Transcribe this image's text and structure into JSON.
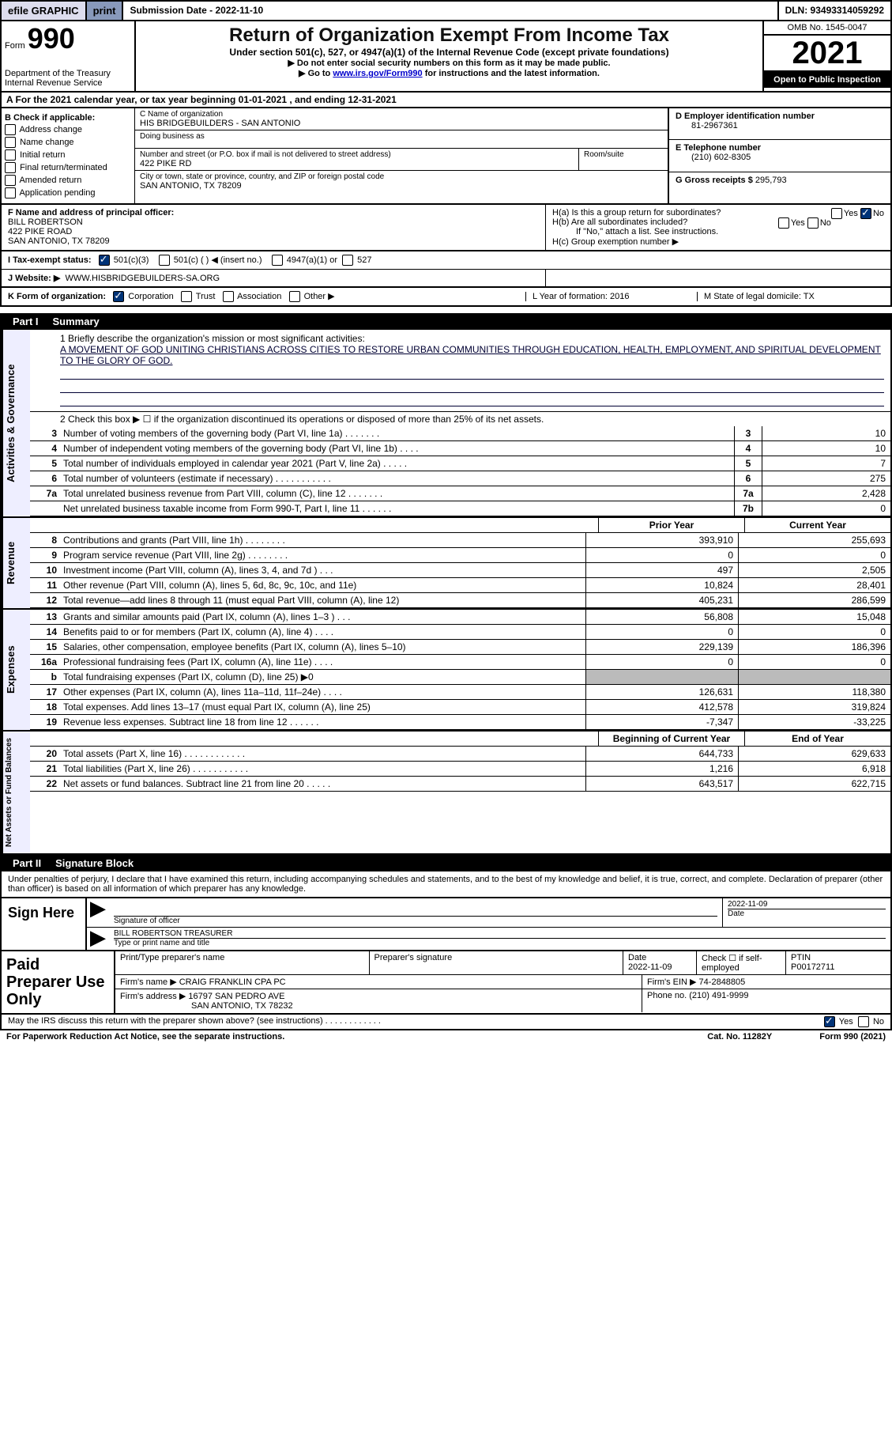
{
  "topbar": {
    "efile": "efile GRAPHIC",
    "print": "print",
    "submission": "Submission Date - 2022-11-10",
    "dln": "DLN: 93493314059292"
  },
  "header": {
    "form_label": "Form",
    "form_num": "990",
    "dept": "Department of the Treasury\nInternal Revenue Service",
    "title": "Return of Organization Exempt From Income Tax",
    "subtitle": "Under section 501(c), 527, or 4947(a)(1) of the Internal Revenue Code (except private foundations)",
    "line1": "▶ Do not enter social security numbers on this form as it may be made public.",
    "line2_pre": "▶ Go to ",
    "line2_link": "www.irs.gov/Form990",
    "line2_post": " for instructions and the latest information.",
    "omb": "OMB No. 1545-0047",
    "year": "2021",
    "open": "Open to Public Inspection"
  },
  "row_a": "A For the 2021 calendar year, or tax year beginning 01-01-2021   , and ending 12-31-2021",
  "box_b": {
    "hdr": "B Check if applicable:",
    "items": [
      "Address change",
      "Name change",
      "Initial return",
      "Final return/terminated",
      "Amended return",
      "Application pending"
    ]
  },
  "box_c": {
    "name_lbl": "C Name of organization",
    "name": "HIS BRIDGEBUILDERS - SAN ANTONIO",
    "dba_lbl": "Doing business as",
    "dba": "",
    "addr_lbl": "Number and street (or P.O. box if mail is not delivered to street address)",
    "addr": "422 PIKE RD",
    "room_lbl": "Room/suite",
    "city_lbl": "City or town, state or province, country, and ZIP or foreign postal code",
    "city": "SAN ANTONIO, TX  78209"
  },
  "box_d": {
    "ein_lbl": "D Employer identification number",
    "ein": "81-2967361",
    "tel_lbl": "E Telephone number",
    "tel": "(210) 602-8305",
    "gross_lbl": "G Gross receipts $",
    "gross": "295,793"
  },
  "box_f": {
    "lbl": "F Name and address of principal officer:",
    "name": "BILL ROBERTSON",
    "addr1": "422 PIKE ROAD",
    "addr2": "SAN ANTONIO, TX  78209"
  },
  "box_h": {
    "ha": "H(a)  Is this a group return for subordinates?",
    "hb": "H(b)  Are all subordinates included?",
    "hb_note": "If \"No,\" attach a list. See instructions.",
    "hc": "H(c)  Group exemption number ▶",
    "yes": "Yes",
    "no": "No"
  },
  "tax_status": {
    "lbl": "I   Tax-exempt status:",
    "opts": [
      "501(c)(3)",
      "501(c) (  ) ◀ (insert no.)",
      "4947(a)(1) or",
      "527"
    ]
  },
  "website": {
    "lbl": "J   Website: ▶",
    "val": "WWW.HISBRIDGEBUILDERS-SA.ORG"
  },
  "k_row": {
    "lbl": "K Form of organization:",
    "opts": [
      "Corporation",
      "Trust",
      "Association",
      "Other ▶"
    ],
    "l": "L Year of formation: 2016",
    "m": "M State of legal domicile: TX"
  },
  "part1": {
    "num": "Part I",
    "title": "Summary"
  },
  "summary": {
    "side1": "Activities & Governance",
    "mission_lbl": "1   Briefly describe the organization's mission or most significant activities:",
    "mission": "A MOVEMENT OF GOD UNITING CHRISTIANS ACROSS CITIES TO RESTORE URBAN COMMUNITIES THROUGH EDUCATION, HEALTH, EMPLOYMENT, AND SPIRITUAL DEVELOPMENT TO THE GLORY OF GOD.",
    "line2": "2   Check this box ▶ ☐ if the organization discontinued its operations or disposed of more than 25% of its net assets.",
    "rows_gov": [
      {
        "n": "3",
        "t": "Number of voting members of the governing body (Part VI, line 1a)  .    .    .    .    .    .    .",
        "b": "3",
        "v": "10"
      },
      {
        "n": "4",
        "t": "Number of independent voting members of the governing body (Part VI, line 1b)  .    .    .    .",
        "b": "4",
        "v": "10"
      },
      {
        "n": "5",
        "t": "Total number of individuals employed in calendar year 2021 (Part V, line 2a)  .    .    .    .    .",
        "b": "5",
        "v": "7"
      },
      {
        "n": "6",
        "t": "Total number of volunteers (estimate if necessary)    .    .    .    .    .    .    .    .    .    .    .",
        "b": "6",
        "v": "275"
      },
      {
        "n": "7a",
        "t": "Total unrelated business revenue from Part VIII, column (C), line 12  .    .    .    .    .    .    .",
        "b": "7a",
        "v": "2,428"
      },
      {
        "n": "",
        "t": "Net unrelated business taxable income from Form 990-T, Part I, line 11  .    .    .    .    .    .",
        "b": "7b",
        "v": "0"
      }
    ],
    "side2": "Revenue",
    "hdr_prior": "Prior Year",
    "hdr_curr": "Current Year",
    "rows_rev": [
      {
        "n": "8",
        "t": "Contributions and grants (Part VIII, line 1h)   .    .    .    .    .    .    .    .",
        "p": "393,910",
        "c": "255,693"
      },
      {
        "n": "9",
        "t": "Program service revenue (Part VIII, line 2g)   .    .    .    .    .    .    .    .",
        "p": "0",
        "c": "0"
      },
      {
        "n": "10",
        "t": "Investment income (Part VIII, column (A), lines 3, 4, and 7d )   .    .    .",
        "p": "497",
        "c": "2,505"
      },
      {
        "n": "11",
        "t": "Other revenue (Part VIII, column (A), lines 5, 6d, 8c, 9c, 10c, and 11e)",
        "p": "10,824",
        "c": "28,401"
      },
      {
        "n": "12",
        "t": "Total revenue—add lines 8 through 11 (must equal Part VIII, column (A), line 12)",
        "p": "405,231",
        "c": "286,599"
      }
    ],
    "side3": "Expenses",
    "rows_exp": [
      {
        "n": "13",
        "t": "Grants and similar amounts paid (Part IX, column (A), lines 1–3 )  .    .    .",
        "p": "56,808",
        "c": "15,048"
      },
      {
        "n": "14",
        "t": "Benefits paid to or for members (Part IX, column (A), line 4)  .    .    .    .",
        "p": "0",
        "c": "0"
      },
      {
        "n": "15",
        "t": "Salaries, other compensation, employee benefits (Part IX, column (A), lines 5–10)",
        "p": "229,139",
        "c": "186,396"
      },
      {
        "n": "16a",
        "t": "Professional fundraising fees (Part IX, column (A), line 11e)   .    .    .    .",
        "p": "0",
        "c": "0"
      },
      {
        "n": "b",
        "t": "Total fundraising expenses (Part IX, column (D), line 25) ▶0",
        "p": "",
        "c": "",
        "gray": true
      },
      {
        "n": "17",
        "t": "Other expenses (Part IX, column (A), lines 11a–11d, 11f–24e)   .    .    .    .",
        "p": "126,631",
        "c": "118,380"
      },
      {
        "n": "18",
        "t": "Total expenses. Add lines 13–17 (must equal Part IX, column (A), line 25)",
        "p": "412,578",
        "c": "319,824"
      },
      {
        "n": "19",
        "t": "Revenue less expenses. Subtract line 18 from line 12  .    .    .    .    .    .",
        "p": "-7,347",
        "c": "-33,225"
      }
    ],
    "side4": "Net Assets or Fund Balances",
    "hdr_begin": "Beginning of Current Year",
    "hdr_end": "End of Year",
    "rows_net": [
      {
        "n": "20",
        "t": "Total assets (Part X, line 16)  .    .    .    .    .    .    .    .    .    .    .    .",
        "p": "644,733",
        "c": "629,633"
      },
      {
        "n": "21",
        "t": "Total liabilities (Part X, line 26)  .    .    .    .    .    .    .    .    .    .    .",
        "p": "1,216",
        "c": "6,918"
      },
      {
        "n": "22",
        "t": "Net assets or fund balances. Subtract line 21 from line 20  .    .    .    .    .",
        "p": "643,517",
        "c": "622,715"
      }
    ]
  },
  "part2": {
    "num": "Part II",
    "title": "Signature Block"
  },
  "sig_text": "Under penalties of perjury, I declare that I have examined this return, including accompanying schedules and statements, and to the best of my knowledge and belief, it is true, correct, and complete. Declaration of preparer (other than officer) is based on all information of which preparer has any knowledge.",
  "sign": {
    "here": "Sign Here",
    "sig_lbl": "Signature of officer",
    "date": "2022-11-09",
    "date_lbl": "Date",
    "name": "BILL ROBERTSON  TREASURER",
    "name_lbl": "Type or print name and title"
  },
  "prep": {
    "title": "Paid Preparer Use Only",
    "r1": {
      "c1": "Print/Type preparer's name",
      "c2": "Preparer's signature",
      "c3": "Date\n2022-11-09",
      "c4": "Check ☐ if self-employed",
      "c5": "PTIN\nP00172711"
    },
    "r2": {
      "c1": "Firm's name    ▶ CRAIG FRANKLIN CPA PC",
      "c2": "Firm's EIN ▶ 74-2848805"
    },
    "r3": {
      "c1": "Firm's address ▶ 16797 SAN PEDRO AVE",
      "c2": "Phone no. (210) 491-9999"
    },
    "r3b": "SAN ANTONIO, TX  78232"
  },
  "discuss": {
    "txt": "May the IRS discuss this return with the preparer shown above? (see instructions)   .    .    .    .    .    .    .    .    .    .    .    .",
    "yes": "Yes",
    "no": "No"
  },
  "footer": {
    "f1": "For Paperwork Reduction Act Notice, see the separate instructions.",
    "f2": "Cat. No. 11282Y",
    "f3": "Form 990 (2021)"
  }
}
